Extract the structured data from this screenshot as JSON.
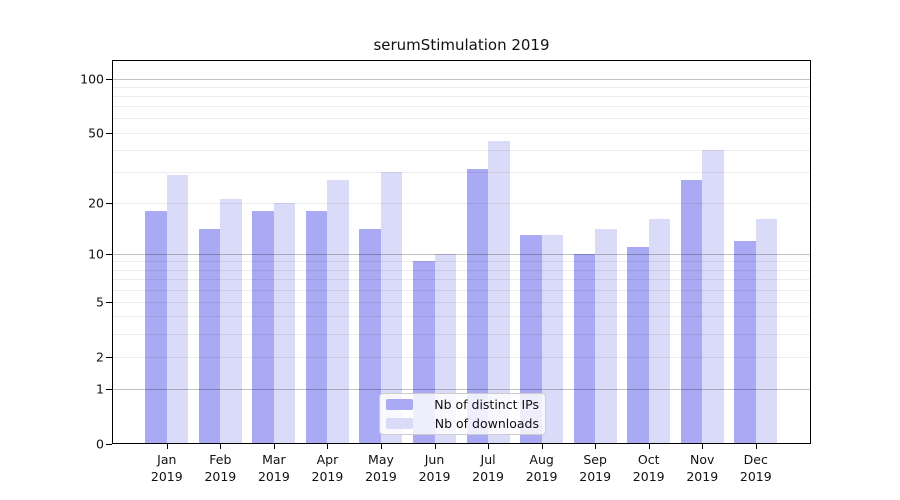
{
  "title": "serumStimulation 2019",
  "chart_data": {
    "type": "bar",
    "title": "serumStimulation 2019",
    "categories": [
      "Jan",
      "Feb",
      "Mar",
      "Apr",
      "May",
      "Jun",
      "Jul",
      "Aug",
      "Sep",
      "Oct",
      "Nov",
      "Dec"
    ],
    "category_year": "2019",
    "series": [
      {
        "name": "Nb of distinct IPs",
        "key": "distinct-ips",
        "color": "#a9a9f4",
        "values": [
          18,
          14,
          18,
          18,
          14,
          9,
          31,
          13,
          10,
          11,
          27,
          12
        ]
      },
      {
        "name": "Nb of downloads",
        "key": "downloads",
        "color": "#dadaf9",
        "values": [
          29,
          21,
          20,
          27,
          30,
          10,
          45,
          13,
          14,
          16,
          40,
          16
        ]
      }
    ],
    "y_axis": {
      "scale": "log10(value+1)",
      "tick_values": [
        100,
        50,
        20,
        10,
        5,
        2,
        1,
        0
      ],
      "tick_labels": [
        "100",
        "50",
        "20",
        "10",
        "5",
        "2",
        "1",
        "0"
      ],
      "major_gridlines": [
        1,
        10,
        100
      ],
      "minor_gridlines": [
        2,
        3,
        4,
        5,
        6,
        7,
        8,
        9,
        20,
        30,
        40,
        50,
        60,
        70,
        80,
        90
      ],
      "top_value": 122
    },
    "xlabel": "",
    "ylabel": "",
    "grid": true,
    "legend_position": "lower center"
  },
  "colors": {
    "background": "#ffffff",
    "bar_distinct_ips": "#a9a9f4",
    "bar_downloads": "#dadaf9",
    "major_grid": "rgba(0,0,0,0.24)",
    "minor_grid": "rgba(0,0,0,0.07)",
    "axis": "#000000",
    "text": "#111111",
    "legend_border": "#cccccc",
    "legend_background": "rgba(255,255,255,0.8)"
  }
}
